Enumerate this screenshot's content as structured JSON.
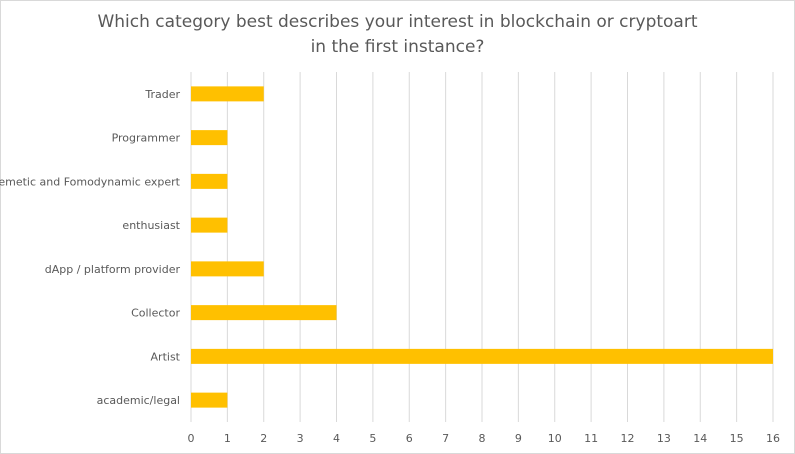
{
  "chart_data": {
    "type": "bar",
    "orientation": "horizontal",
    "title_lines": [
      "Which category best describes your interest in blockchain or cryptoart",
      "in the first instance?"
    ],
    "categories": [
      "Trader",
      "Programmer",
      "Memetic and Fomodynamic expert",
      "enthusiast",
      "dApp / platform provider",
      "Collector",
      "Artist",
      "academic/legal"
    ],
    "values": [
      2,
      1,
      1,
      1,
      2,
      4,
      16,
      1
    ],
    "xlim": [
      0,
      16
    ],
    "xticks": [
      "0",
      "1",
      "2",
      "3",
      "4",
      "5",
      "6",
      "7",
      "8",
      "9",
      "10",
      "11",
      "12",
      "13",
      "14",
      "15",
      "16"
    ],
    "grid": "vertical",
    "legend": "none",
    "bar_color": "#FFC000",
    "grid_color": "#D9D9D9",
    "text_color": "#595959"
  }
}
